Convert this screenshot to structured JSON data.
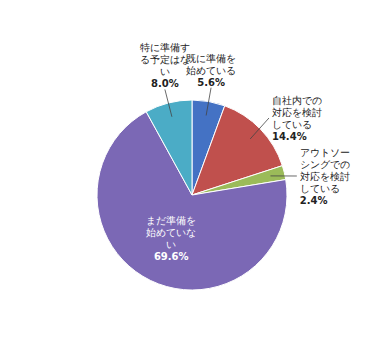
{
  "chart_data": {
    "type": "pie",
    "categories": [
      "既に準備を\n始めている",
      "自社内での\n対応を検討\nしている",
      "アウトソー\nシングでの\n対応を検討\nしている",
      "まだ準備を\n始めていな\nい",
      "特に準備す\nる予定はな\nい"
    ],
    "values": [
      5.6,
      14.4,
      2.4,
      69.6,
      8.0
    ],
    "value_labels": [
      "5.6%",
      "14.4%",
      "2.4%",
      "69.6%",
      "8.0%"
    ],
    "colors": [
      "#4472C4",
      "#C0504D",
      "#9BBB59",
      "#7B68B5",
      "#4BACC6"
    ],
    "data_labels": true
  }
}
